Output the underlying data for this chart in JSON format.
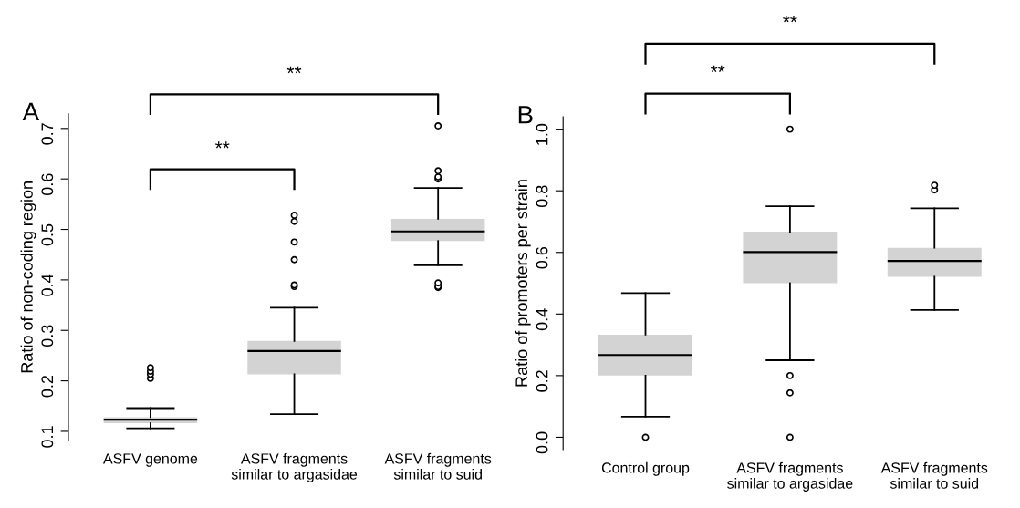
{
  "chart_data": [
    {
      "type": "box",
      "ylabel": "Ratio of non-coding region",
      "categories": [
        "ASFV genome",
        "ASFV fragments\nsimilar to argasidae",
        "ASFV fragments\nsimilar to suid"
      ],
      "color": "#d3d3d3",
      "ylim": [
        0.082,
        0.729
      ],
      "yticks": [
        0.1,
        0.2,
        0.3,
        0.4,
        0.5,
        0.6,
        0.7
      ],
      "annotations": [
        "A",
        "**",
        "**"
      ],
      "boxes": [
        {
          "low": 0.106,
          "q1": 0.116,
          "median": 0.123,
          "q3": 0.128,
          "high": 0.146,
          "outliers": [
            0.205,
            0.213,
            0.219,
            0.226
          ]
        },
        {
          "low": 0.134,
          "q1": 0.213,
          "median": 0.259,
          "q3": 0.279,
          "high": 0.345,
          "outliers": [
            0.387,
            0.39,
            0.44,
            0.475,
            0.516,
            0.528
          ]
        },
        {
          "low": 0.429,
          "q1": 0.477,
          "median": 0.496,
          "q3": 0.521,
          "high": 0.582,
          "outliers": [
            0.385,
            0.387,
            0.394,
            0.6,
            0.604,
            0.616,
            0.705
          ]
        }
      ]
    },
    {
      "type": "box",
      "ylabel": "Ratio of promoters per strain",
      "categories": [
        "Control group",
        "ASFV fragments\nsimilar to argasidae",
        "ASFV fragments\nsimilar to suid"
      ],
      "color": "#d3d3d3",
      "ylim": [
        -0.04,
        1.04
      ],
      "yticks": [
        {
          "value": 0,
          "label": "0.0"
        },
        0.2,
        0.4,
        0.6,
        0.8,
        {
          "value": 1,
          "label": "1.0"
        }
      ],
      "annotations": [
        "B",
        "**",
        "**"
      ],
      "boxes": [
        {
          "low": 0.067,
          "q1": 0.2,
          "median": 0.267,
          "q3": 0.333,
          "high": 0.468,
          "outliers": [
            0.0
          ]
        },
        {
          "low": 0.25,
          "q1": 0.5,
          "median": 0.601,
          "q3": 0.667,
          "high": 0.75,
          "outliers": [
            0.0,
            0.144,
            0.2,
            1.0
          ]
        },
        {
          "low": 0.413,
          "q1": 0.521,
          "median": 0.572,
          "q3": 0.615,
          "high": 0.743,
          "outliers": [
            0.803,
            0.818
          ]
        }
      ]
    }
  ]
}
